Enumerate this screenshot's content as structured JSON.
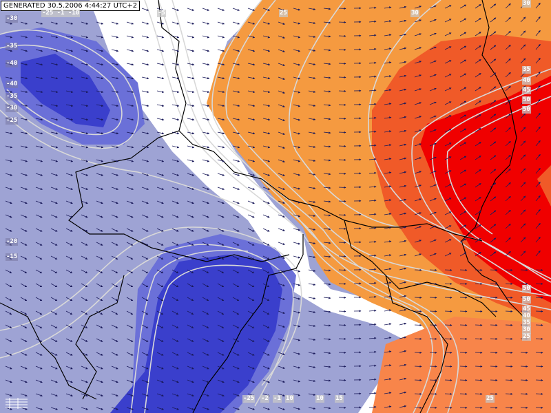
{
  "header": {
    "generated_stamp": "GENERATED 30.5.2006 4:44:27 UTC+2"
  },
  "map": {
    "background": "#ffffff",
    "colors": {
      "cold_extreme": "#3a3fcc",
      "cold_strong": "#6b70d8",
      "cold_light": "#9ea3d4",
      "warm_light": "#f59a40",
      "warm_mid": "#f8854a",
      "warm_strong": "#f05a28",
      "warm_extreme": "#f00000",
      "border_line": "#000000",
      "contour_line": "#d8d8d8",
      "wind_arrow": "#1a1a5a"
    },
    "contour_labels": [
      {
        "text": "-30"
      },
      {
        "text": "-35"
      },
      {
        "text": "-40"
      },
      {
        "text": "-40"
      },
      {
        "text": "-35"
      },
      {
        "text": "-30"
      },
      {
        "text": "-25"
      },
      {
        "text": "-20"
      },
      {
        "text": "-15"
      },
      {
        "text": "-25 -1 -10"
      },
      {
        "text": "-5"
      },
      {
        "text": "25"
      },
      {
        "text": "30"
      },
      {
        "text": "30"
      },
      {
        "text": "35"
      },
      {
        "text": "40"
      },
      {
        "text": "45"
      },
      {
        "text": "50"
      },
      {
        "text": "50"
      },
      {
        "text": "50"
      },
      {
        "text": "50"
      },
      {
        "text": "45"
      },
      {
        "text": "40"
      },
      {
        "text": "35"
      },
      {
        "text": "30"
      },
      {
        "text": "25"
      },
      {
        "text": "25"
      },
      {
        "text": "-25"
      },
      {
        "text": "-2"
      },
      {
        "text": "-1"
      },
      {
        "text": "10"
      },
      {
        "text": "10"
      },
      {
        "text": "15"
      }
    ]
  }
}
